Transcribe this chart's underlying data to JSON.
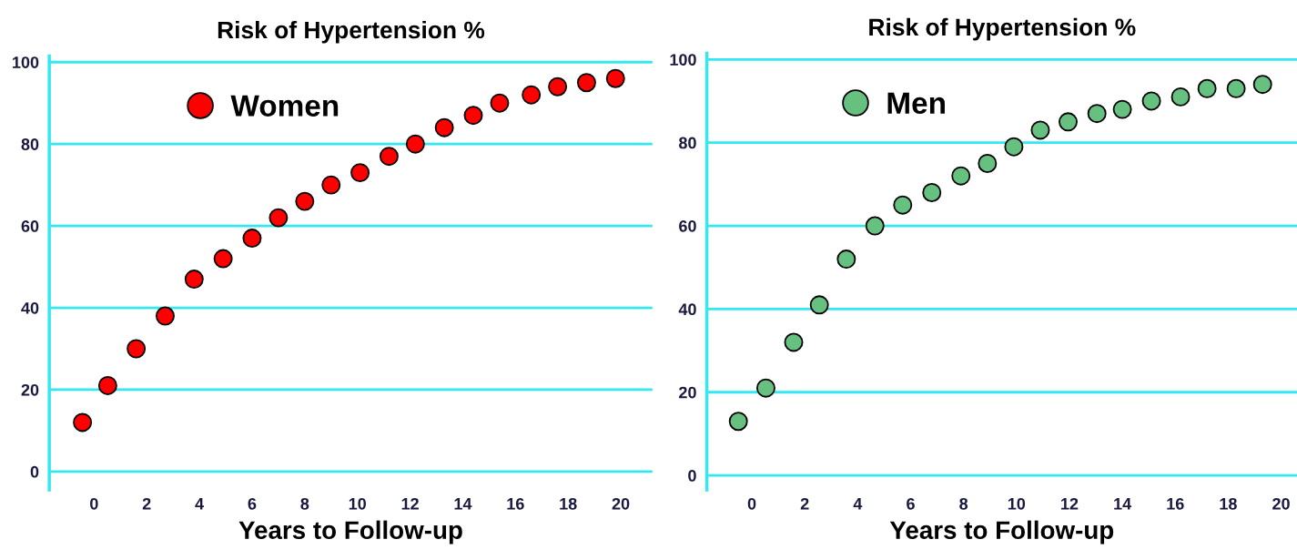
{
  "chart_data": [
    {
      "type": "scatter",
      "title": "Risk of Hypertension %",
      "xlabel": "Years to Follow-up",
      "x": [
        -0.44,
        0.52,
        1.6,
        2.7,
        3.8,
        4.9,
        6.0,
        7.0,
        8.0,
        9.0,
        10.1,
        11.2,
        12.2,
        13.3,
        14.4,
        15.4,
        16.6,
        17.6,
        18.7,
        19.8
      ],
      "series": [
        {
          "name": "Women",
          "color": "#ff0000",
          "values": [
            12,
            21,
            30,
            38,
            47,
            52,
            57,
            62,
            66,
            70,
            73,
            77,
            80,
            84,
            87,
            90,
            92,
            94,
            95,
            96
          ]
        }
      ],
      "xlim": [
        -1.7,
        21.2
      ],
      "ylim": [
        -4.5,
        101.5
      ],
      "xticks": [
        0,
        2,
        4,
        6,
        8,
        10,
        12,
        14,
        16,
        18,
        20
      ],
      "yticks": [
        0,
        20,
        40,
        60,
        80,
        100
      ],
      "grid": "y",
      "legend": "top left",
      "marker": "circle"
    },
    {
      "type": "scatter",
      "title": "Risk of Hypertension %",
      "xlabel": "Years to Follow-up",
      "x": [
        -0.51,
        0.53,
        1.58,
        2.55,
        3.57,
        4.65,
        5.7,
        6.8,
        7.9,
        8.9,
        9.9,
        10.9,
        11.95,
        13.04,
        14.0,
        15.1,
        16.2,
        17.2,
        18.3,
        19.3
      ],
      "series": [
        {
          "name": "Men",
          "color": "#66c080",
          "values": [
            13,
            21,
            32,
            41,
            52,
            60,
            65,
            68,
            72,
            75,
            79,
            83,
            85,
            87,
            88,
            90,
            91,
            93,
            93,
            94
          ]
        }
      ],
      "xlim": [
        -1.7,
        20.6
      ],
      "ylim": [
        -3.5,
        101.5
      ],
      "xticks": [
        0,
        2,
        4,
        6,
        8,
        10,
        12,
        14,
        16,
        18,
        20
      ],
      "yticks": [
        0,
        20,
        40,
        60,
        80,
        100
      ],
      "grid": "y",
      "legend": "top left",
      "marker": "circle"
    }
  ]
}
